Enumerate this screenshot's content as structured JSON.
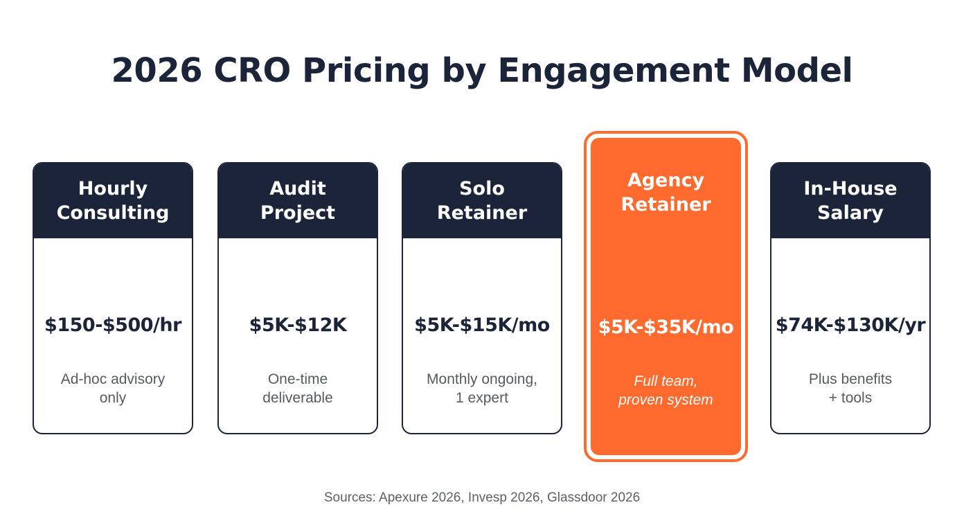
{
  "title": "2026 CRO Pricing by Engagement Model",
  "cards": [
    {
      "name_line1": "Hourly",
      "name_line2": "Consulting",
      "price": "$150-$500/hr",
      "desc_line1": "Ad-hoc advisory",
      "desc_line2": "only"
    },
    {
      "name_line1": "Audit",
      "name_line2": "Project",
      "price": "$5K-$12K",
      "desc_line1": "One-time",
      "desc_line2": "deliverable"
    },
    {
      "name_line1": "Solo",
      "name_line2": "Retainer",
      "price": "$5K-$15K/mo",
      "desc_line1": "Monthly ongoing,",
      "desc_line2": "1 expert"
    },
    {
      "name_line1": "Agency",
      "name_line2": "Retainer",
      "price": "$5K-$35K/mo",
      "desc_line1": "Full team,",
      "desc_line2": "proven system",
      "highlighted": true
    },
    {
      "name_line1": "In-House",
      "name_line2": "Salary",
      "price": "$74K-$130K/yr",
      "desc_line1": "Plus benefits",
      "desc_line2": "+ tools"
    }
  ],
  "sources": "Sources: Apexure 2026, Invesp 2026, Glassdoor 2026",
  "colors": {
    "navy": "#1b2438",
    "accent": "#ff6a2e",
    "muted_text": "#555a63"
  }
}
